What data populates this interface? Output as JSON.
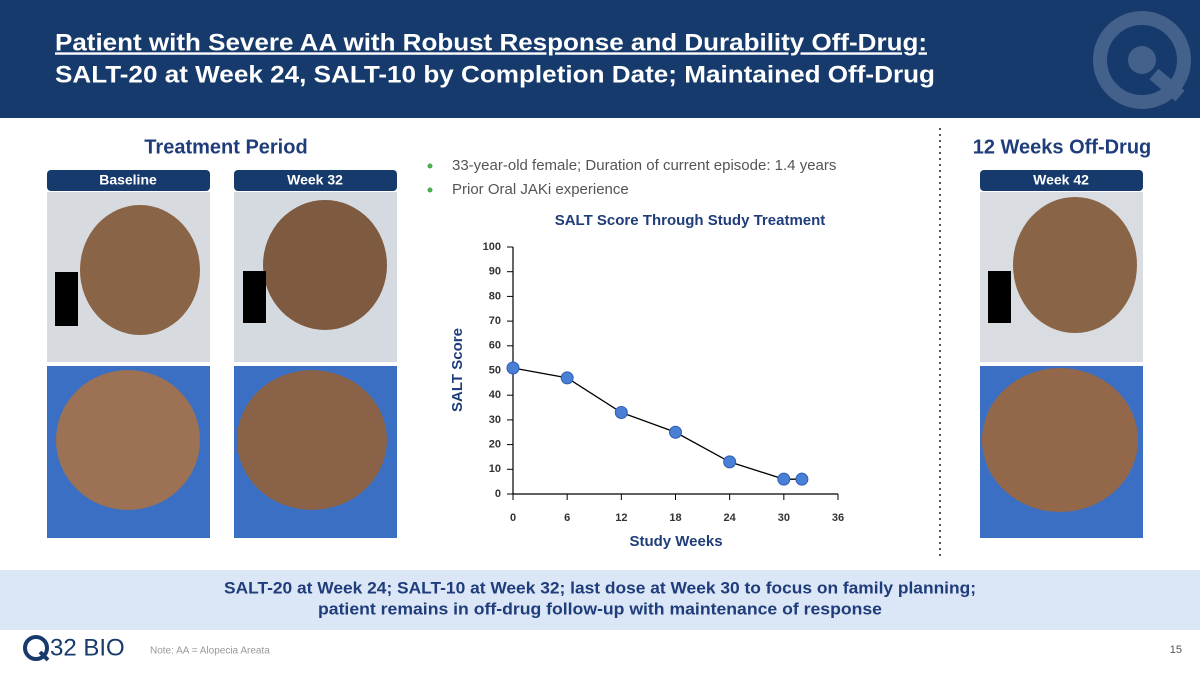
{
  "header": {
    "title_lines": [
      "Patient with Severe AA with Robust Response and Durability Off-Drug:",
      "SALT-20 at Week 24, SALT-10 by Completion Date; Maintained Off-Drug"
    ]
  },
  "treatment": {
    "heading": "Treatment Period",
    "photo_labels": [
      "Baseline",
      "Week 32"
    ]
  },
  "off_drug": {
    "heading": "12 Weeks Off-Drug",
    "photo_labels": [
      "Week 42"
    ]
  },
  "bullets": [
    "33-year-old female; Duration of current episode: 1.4 years",
    "Prior Oral JAKi experience"
  ],
  "chart_data": {
    "type": "line",
    "title": "SALT Score Through Study Treatment",
    "x_label": "Study Weeks",
    "y_label": "SALT Score",
    "x": [
      0,
      6,
      12,
      18,
      24,
      30,
      32
    ],
    "values": [
      51,
      47,
      33,
      25,
      13,
      6,
      6
    ],
    "color": "#4a7fd6",
    "xlim": [
      0,
      36
    ],
    "xticks": [
      0,
      6,
      12,
      18,
      24,
      30,
      36
    ],
    "ylim": [
      0,
      100
    ],
    "yticks": [
      0,
      10,
      20,
      30,
      40,
      50,
      60,
      70,
      80,
      90,
      100
    ]
  },
  "banner": {
    "lines": [
      "SALT-20 at Week 24; SALT-10 at Week 32; last dose at Week 30 to focus on family planning;",
      "patient remains in off-drug follow-up with maintenance of response"
    ]
  },
  "footer": {
    "logo_text": "32 BIO",
    "note": "Note: AA = Alopecia Areata",
    "page_number": "15"
  }
}
